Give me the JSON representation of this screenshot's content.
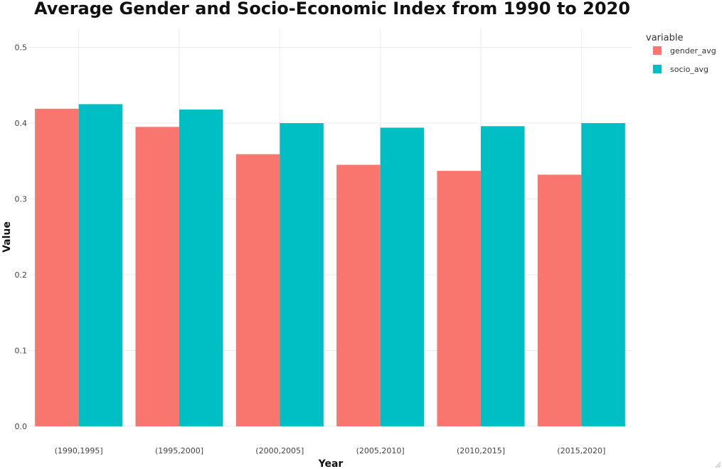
{
  "chart_data": {
    "type": "bar",
    "title": "Average Gender and Socio-Economic Index from 1990 to 2020",
    "xlabel": "Year",
    "ylabel": "Value",
    "categories": [
      "(1990,1995]",
      "(1995,2000]",
      "(2000,2005]",
      "(2005,2010]",
      "(2010,2015]",
      "(2015,2020]"
    ],
    "series": [
      {
        "name": "gender_avg",
        "color": "#F8766D",
        "values": [
          0.419,
          0.395,
          0.359,
          0.345,
          0.337,
          0.332
        ]
      },
      {
        "name": "socio_avg",
        "color": "#00BFC4",
        "values": [
          0.425,
          0.418,
          0.4,
          0.394,
          0.396,
          0.4
        ]
      }
    ],
    "ylim": [
      0,
      0.52
    ],
    "yticks": [
      0.0,
      0.1,
      0.2,
      0.3,
      0.4,
      0.5
    ],
    "ytick_labels": [
      "0.0",
      "0.1",
      "0.2",
      "0.3",
      "0.4",
      "0.5"
    ],
    "grid": true,
    "legend": {
      "title": "variable",
      "placement": "right"
    }
  }
}
